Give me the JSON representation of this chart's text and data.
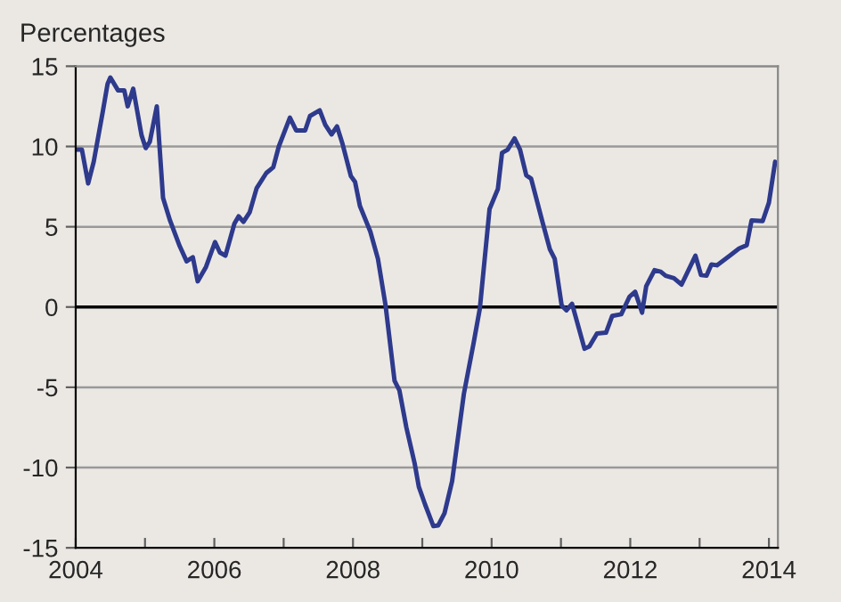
{
  "chart_data": {
    "type": "line",
    "ylabel": "Percentages",
    "x": [
      2004.0,
      2004.09,
      2004.18,
      2004.26,
      2004.39,
      2004.46,
      2004.5,
      2004.61,
      2004.7,
      2004.75,
      2004.83,
      2004.95,
      2005.01,
      2005.07,
      2005.17,
      2005.26,
      2005.36,
      2005.5,
      2005.6,
      2005.69,
      2005.76,
      2005.88,
      2006.01,
      2006.08,
      2006.16,
      2006.29,
      2006.35,
      2006.42,
      2006.51,
      2006.61,
      2006.75,
      2006.85,
      2006.93,
      2007.09,
      2007.18,
      2007.31,
      2007.38,
      2007.52,
      2007.6,
      2007.69,
      2007.77,
      2007.85,
      2007.97,
      2008.03,
      2008.1,
      2008.25,
      2008.36,
      2008.47,
      2008.6,
      2008.67,
      2008.77,
      2008.89,
      2008.95,
      2009.04,
      2009.16,
      2009.23,
      2009.32,
      2009.43,
      2009.6,
      2009.74,
      2009.83,
      2009.97,
      2010.09,
      2010.15,
      2010.23,
      2010.33,
      2010.41,
      2010.5,
      2010.57,
      2010.74,
      2010.84,
      2010.91,
      2011.01,
      2011.08,
      2011.16,
      2011.26,
      2011.34,
      2011.41,
      2011.52,
      2011.65,
      2011.74,
      2011.87,
      2011.99,
      2012.07,
      2012.17,
      2012.23,
      2012.35,
      2012.44,
      2012.51,
      2012.63,
      2012.74,
      2012.94,
      2013.02,
      2013.1,
      2013.17,
      2013.25,
      2013.42,
      2013.57,
      2013.68,
      2013.75,
      2013.91,
      2014.0,
      2014.09
    ],
    "series": [
      {
        "color": "#2e3a8c",
        "values": [
          9.8,
          9.8,
          7.7,
          9.05,
          12.15,
          13.9,
          14.3,
          13.5,
          13.5,
          12.5,
          13.6,
          10.7,
          9.9,
          10.3,
          12.5,
          6.8,
          5.4,
          3.8,
          2.85,
          3.1,
          1.6,
          2.5,
          4.05,
          3.4,
          3.2,
          5.2,
          5.65,
          5.3,
          5.9,
          7.4,
          8.35,
          8.7,
          10.0,
          11.8,
          11.0,
          11.0,
          11.9,
          12.25,
          11.35,
          10.75,
          11.25,
          10.15,
          8.15,
          7.8,
          6.3,
          4.7,
          3.0,
          0.1,
          -4.6,
          -5.2,
          -7.5,
          -9.75,
          -11.2,
          -12.3,
          -13.65,
          -13.6,
          -12.85,
          -10.85,
          -5.4,
          -2.25,
          -0.1,
          6.1,
          7.35,
          9.6,
          9.8,
          10.5,
          9.8,
          8.2,
          8.0,
          5.2,
          3.6,
          3.0,
          0.1,
          -0.2,
          0.2,
          -1.35,
          -2.6,
          -2.45,
          -1.65,
          -1.6,
          -0.55,
          -0.45,
          0.65,
          0.95,
          -0.35,
          1.3,
          2.3,
          2.2,
          1.95,
          1.8,
          1.4,
          3.2,
          2.0,
          1.95,
          2.65,
          2.6,
          3.15,
          3.65,
          3.85,
          5.4,
          5.35,
          6.5,
          9.05
        ]
      }
    ],
    "xlim": [
      2004,
      2014.13
    ],
    "xticks": [
      2004,
      {
        "value": 2005,
        "label": null
      },
      2006,
      {
        "value": 2007,
        "label": null
      },
      2008,
      {
        "value": 2009,
        "label": null
      },
      2010,
      {
        "value": 2011,
        "label": null
      },
      2012,
      {
        "value": 2013,
        "label": null
      },
      2014
    ],
    "ylim": [
      -15,
      15
    ],
    "yticks": [
      -15,
      -10,
      -5,
      0,
      5,
      10,
      15
    ],
    "grid": "y",
    "marker": "none",
    "line_style": "solid",
    "ref_lines": [
      {
        "axis": "y",
        "value": 0,
        "color": "#000000"
      }
    ]
  }
}
